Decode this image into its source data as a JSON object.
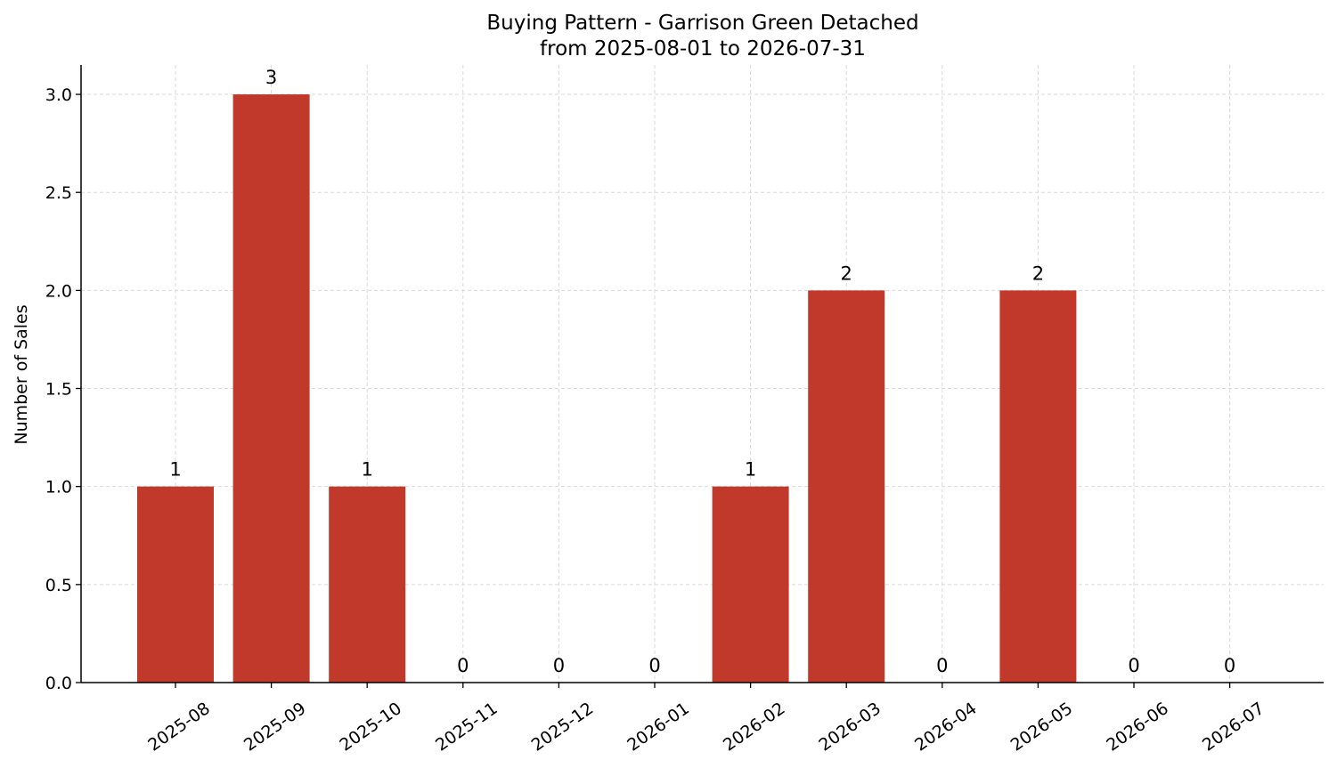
{
  "chart_data": {
    "type": "bar",
    "title": "Buying Pattern - Garrison Green Detached",
    "subtitle": "from 2025-08-01 to 2026-07-31",
    "xlabel": "",
    "ylabel": "Number of Sales",
    "categories": [
      "2025-08",
      "2025-09",
      "2025-10",
      "2025-11",
      "2025-12",
      "2026-01",
      "2026-02",
      "2026-03",
      "2026-04",
      "2026-05",
      "2026-06",
      "2026-07"
    ],
    "values": [
      1,
      3,
      1,
      0,
      0,
      0,
      1,
      2,
      0,
      2,
      0,
      0
    ],
    "ylim": [
      0,
      3.15
    ],
    "yticks": [
      "0.0",
      "0.5",
      "1.0",
      "1.5",
      "2.0",
      "2.5",
      "3.0"
    ],
    "grid": true,
    "bar_color": "#c0392b",
    "grid_color": "#d9d9d9"
  }
}
